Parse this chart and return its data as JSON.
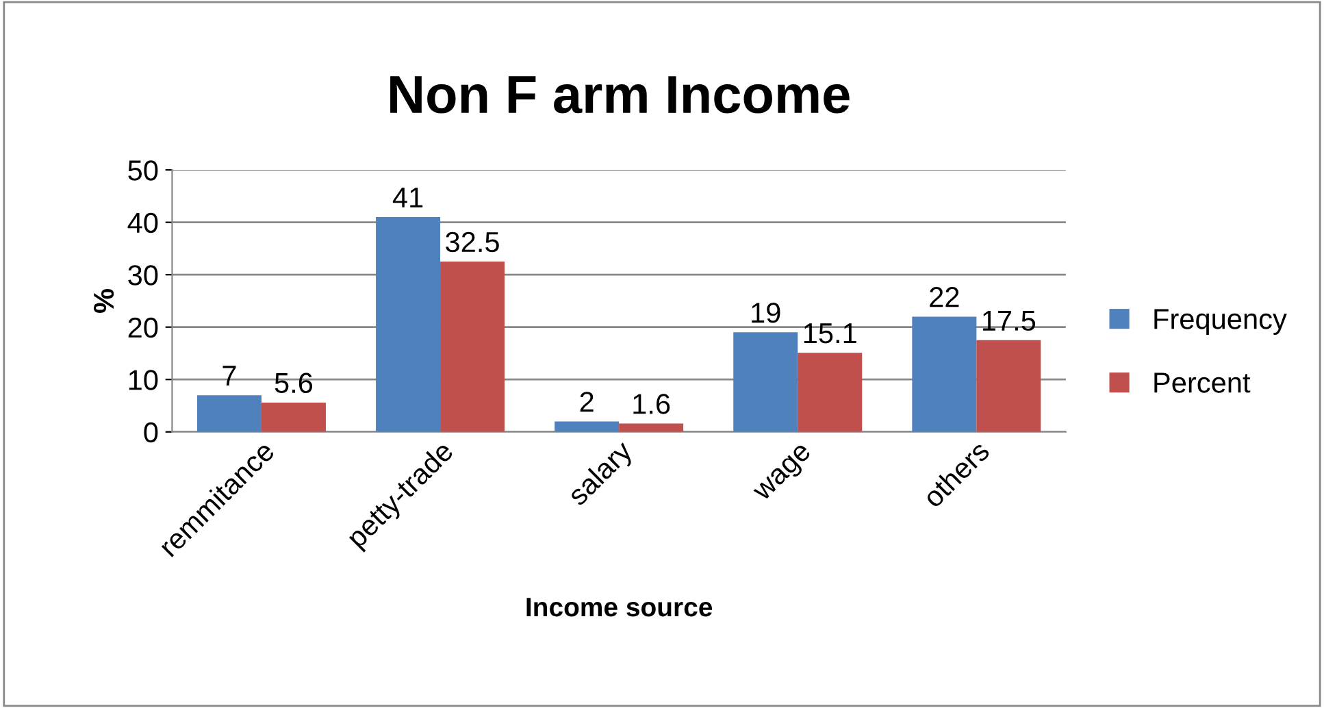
{
  "chart_data": {
    "type": "bar",
    "title": "Non F arm Income",
    "xlabel": "Income source",
    "ylabel": "%",
    "categories": [
      "remmitance",
      "petty-trade",
      "salary",
      "wage",
      "others"
    ],
    "series": [
      {
        "name": "Frequency",
        "color": "#4f81bd",
        "values": [
          7,
          41,
          2,
          19,
          22
        ]
      },
      {
        "name": "Percent",
        "color": "#c0504d",
        "values": [
          5.6,
          32.5,
          1.6,
          15.1,
          17.5
        ]
      }
    ],
    "ylim": [
      0,
      50
    ],
    "yticks": [
      0,
      10,
      20,
      30,
      40,
      50
    ],
    "grid": "y",
    "legend": "right",
    "data_labels": true
  }
}
